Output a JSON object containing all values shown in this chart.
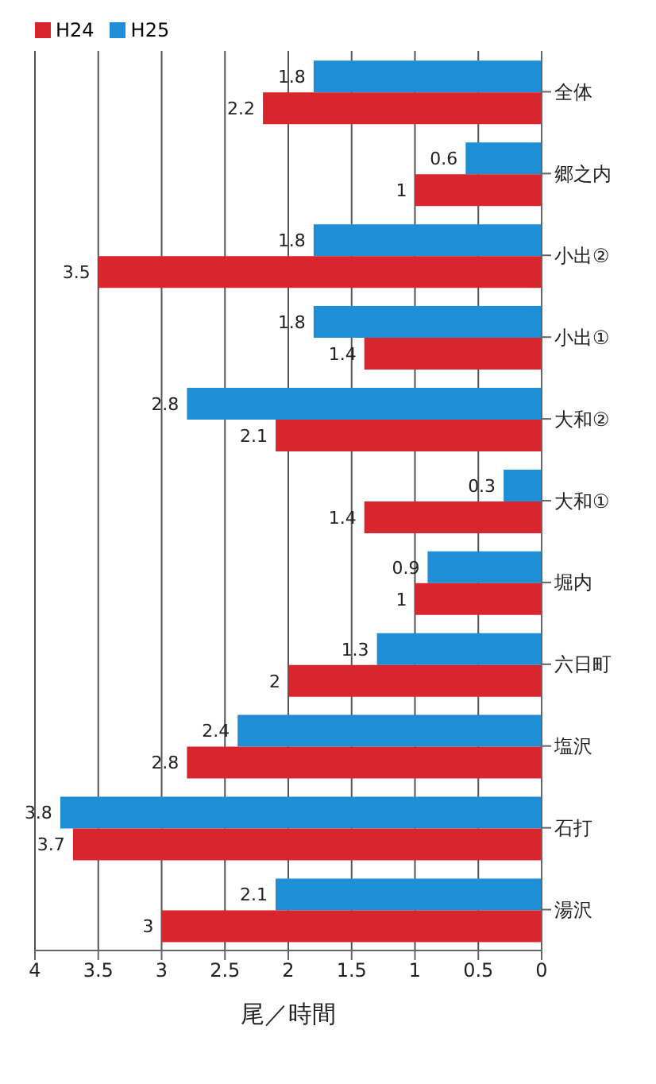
{
  "chart_data": {
    "type": "bar",
    "orientation": "horizontal",
    "xlabel": "尾／時間",
    "categories": [
      "全体",
      "郷之内",
      "小出②",
      "小出①",
      "大和②",
      "大和①",
      "堀内",
      "六日町",
      "塩沢",
      "石打",
      "湯沢"
    ],
    "series": [
      {
        "name": "H24",
        "color": "#d9262e",
        "values": [
          2.2,
          1,
          3.5,
          1.4,
          2.1,
          1.4,
          1,
          2,
          2.8,
          3.7,
          3
        ]
      },
      {
        "name": "H25",
        "color": "#1e8fd6",
        "values": [
          1.8,
          0.6,
          1.8,
          1.8,
          2.8,
          0.3,
          0.9,
          1.3,
          2.4,
          3.8,
          2.1
        ]
      }
    ],
    "xlim": [
      4,
      0
    ],
    "xticks": [
      4,
      3.5,
      3,
      2.5,
      2,
      1.5,
      1,
      0.5,
      0
    ],
    "grid": "x",
    "legend": "top left",
    "data_labels": true
  }
}
